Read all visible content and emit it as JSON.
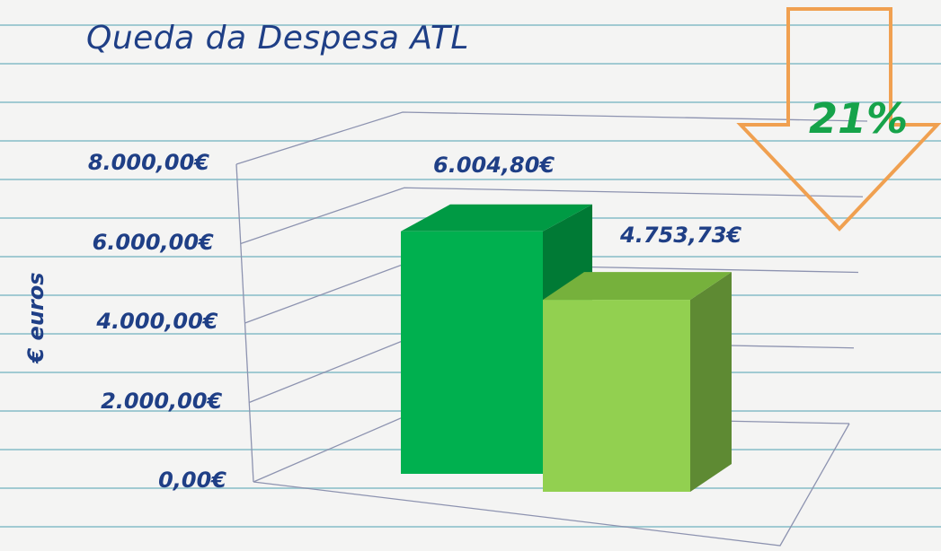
{
  "chart_data": {
    "type": "bar",
    "title": "Queda da Despesa ATL",
    "ylabel": "€ euros",
    "xlabel": "",
    "categories": [
      "",
      ""
    ],
    "values": [
      6004.8,
      4753.73
    ],
    "value_labels": [
      "6.004,80€",
      "4.753,73€"
    ],
    "yticks": [
      "0,00€",
      "2.000,00€",
      "4.000,00€",
      "6.000,00€",
      "8.000,00€"
    ],
    "ylim": [
      0,
      8000
    ],
    "grid": true,
    "style": "3d-column",
    "colors": [
      "#00b04f",
      "#92d050"
    ],
    "annotation": {
      "text": "21%",
      "arrow": "down",
      "color": "#f0a050",
      "text_color": "#16a34a"
    }
  }
}
